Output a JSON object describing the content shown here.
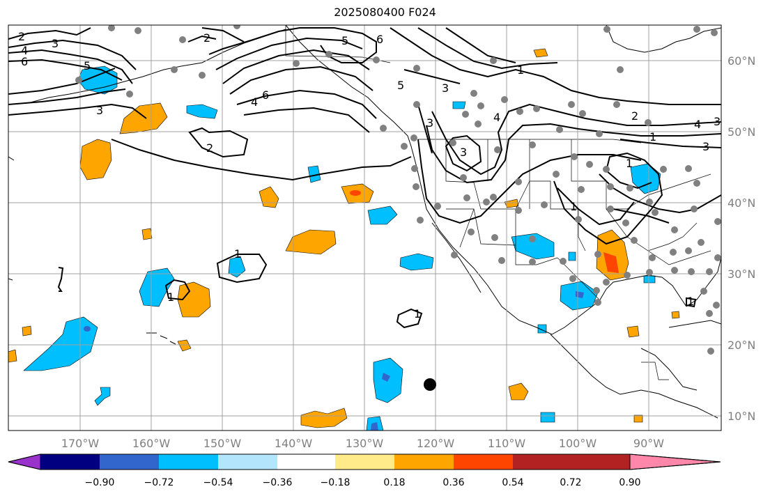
{
  "title": "2025080400 F024",
  "lon_labels": [
    "170°W",
    "160°W",
    "150°W",
    "140°W",
    "130°W",
    "120°W",
    "110°W",
    "100°W",
    "90°W"
  ],
  "lat_labels": [
    "60°N",
    "50°N",
    "40°N",
    "30°N",
    "20°N",
    "10°N"
  ],
  "colorbar": {
    "tick_labels": [
      "−0.90",
      "−0.72",
      "−0.54",
      "−0.36",
      "−0.18",
      "0.18",
      "0.36",
      "0.54",
      "0.72",
      "0.90"
    ],
    "colors": [
      "#9933cc",
      "#000080",
      "#3366cc",
      "#00bfff",
      "#b3e5fc",
      "#ffffff",
      "#ffeb8a",
      "#ffa500",
      "#ff4500",
      "#b22222",
      "#ff88aa"
    ]
  },
  "contour_labels": [
    "2",
    "3",
    "4",
    "6",
    "5",
    "2",
    "5",
    "6",
    "5",
    "3",
    "6",
    "4",
    "3",
    "2",
    "1",
    "3",
    "4",
    "3",
    "3",
    "1",
    "2",
    "4",
    "3",
    "1",
    "1",
    "1",
    "1",
    "1",
    "1"
  ],
  "storm_marker": "tropical-cyclone-position"
}
